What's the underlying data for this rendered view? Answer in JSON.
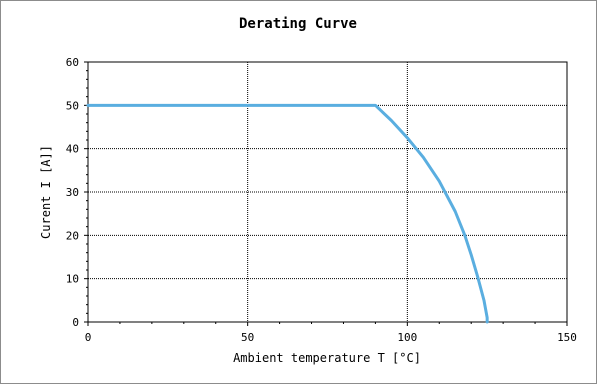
{
  "chart_data": {
    "type": "line",
    "title": "Derating Curve",
    "xlabel": "Ambient temperature T [°C]",
    "ylabel": "Curent I [A]]",
    "xlim": [
      0,
      150
    ],
    "ylim": [
      0,
      60
    ],
    "xticks": [
      0,
      50,
      100,
      150
    ],
    "yticks": [
      0,
      10,
      20,
      30,
      40,
      50,
      60
    ],
    "grid": true,
    "series": [
      {
        "color": "#5aaee0",
        "x": [
          0,
          90,
          95,
          100,
          105,
          110,
          115,
          118,
          120,
          122,
          124,
          124.5,
          125,
          125
        ],
        "y": [
          50,
          50,
          46.5,
          42.5,
          38,
          32.5,
          25.5,
          20,
          15.5,
          10.5,
          5,
          3,
          1,
          0
        ]
      }
    ]
  }
}
